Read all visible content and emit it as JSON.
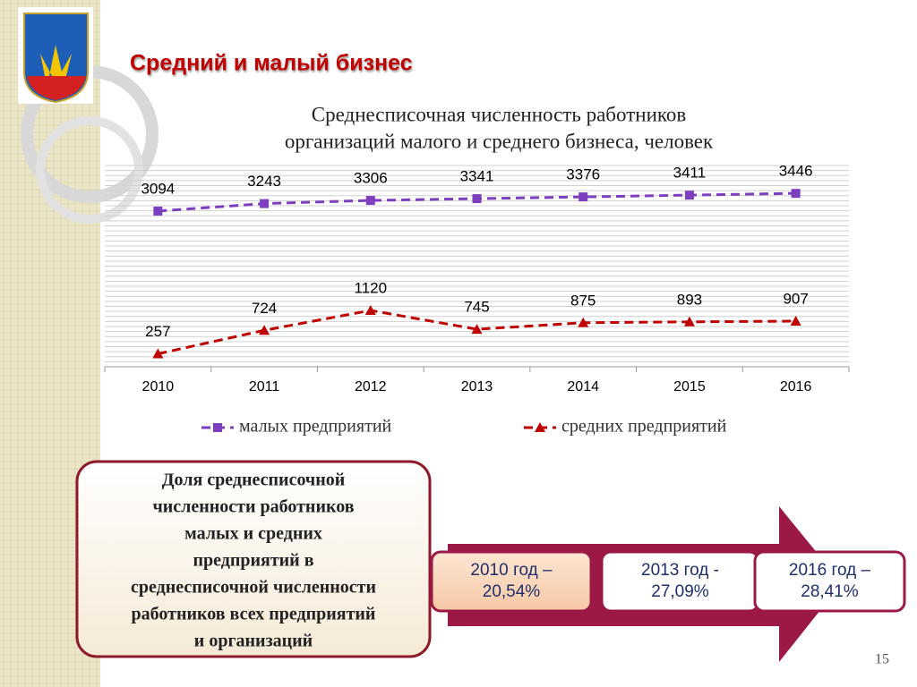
{
  "slide_title": "Средний и малый бизнес",
  "chart_data": {
    "type": "line",
    "title": [
      "Среднесписочная численность работников",
      "организаций малого и среднего бизнеса, человек"
    ],
    "categories": [
      "2010",
      "2011",
      "2012",
      "2013",
      "2014",
      "2015",
      "2016"
    ],
    "series": [
      {
        "name": "малых предприятий",
        "color": "#7d3fc0",
        "marker": "square",
        "values": [
          3094,
          3243,
          3306,
          3341,
          3376,
          3411,
          3446
        ]
      },
      {
        "name": "средних предприятий",
        "color": "#c00000",
        "marker": "triangle",
        "values": [
          257,
          724,
          1120,
          745,
          875,
          893,
          907
        ]
      }
    ],
    "ylim": [
      0,
      4000
    ],
    "grid": true,
    "legend": "bottom"
  },
  "info_box": [
    "Доля среднесписочной",
    "численности работников",
    "малых и средних",
    "предприятий в",
    "среднесписочной численности",
    "работников всех предприятий",
    "и организаций"
  ],
  "callouts": [
    [
      "2010 год –",
      "20,54%"
    ],
    [
      "2013 год -",
      "27,09%"
    ],
    [
      "2016 год –",
      "28,41%"
    ]
  ],
  "page_number": "15"
}
